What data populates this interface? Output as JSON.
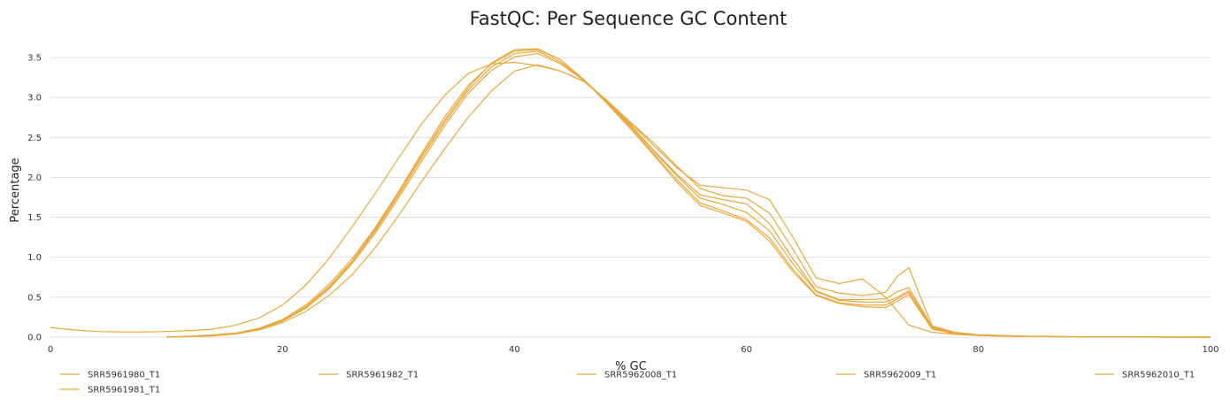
{
  "chart_data": {
    "type": "line",
    "title": "FastQC: Per Sequence GC Content",
    "xlabel": "% GC",
    "ylabel": "Percentage",
    "xlim": [
      0,
      100
    ],
    "ylim": [
      0,
      3.8
    ],
    "x_ticks": [
      "0",
      "20",
      "40",
      "60",
      "80",
      "100"
    ],
    "y_ticks": [
      "0.0",
      "0.5",
      "1.0",
      "1.5",
      "2.0",
      "2.5",
      "3.0",
      "3.5"
    ],
    "grid": true,
    "legend_position": "bottom",
    "line_color": "#e8a83e",
    "series": [
      {
        "name": "SRR5961980_T1",
        "points": [
          [
            0,
            0.12
          ],
          [
            2,
            0.09
          ],
          [
            4,
            0.07
          ],
          [
            6,
            0.065
          ],
          [
            8,
            0.065
          ],
          [
            10,
            0.07
          ],
          [
            12,
            0.08
          ],
          [
            14,
            0.1
          ],
          [
            16,
            0.15
          ],
          [
            18,
            0.24
          ],
          [
            20,
            0.4
          ],
          [
            22,
            0.65
          ],
          [
            24,
            0.98
          ],
          [
            26,
            1.38
          ],
          [
            28,
            1.8
          ],
          [
            30,
            2.24
          ],
          [
            32,
            2.67
          ],
          [
            34,
            3.03
          ],
          [
            36,
            3.3
          ],
          [
            38,
            3.42
          ],
          [
            40,
            3.44
          ],
          [
            42,
            3.4
          ],
          [
            44,
            3.33
          ],
          [
            46,
            3.2
          ],
          [
            48,
            2.96
          ],
          [
            50,
            2.68
          ],
          [
            52,
            2.4
          ],
          [
            54,
            2.12
          ],
          [
            56,
            1.9
          ],
          [
            58,
            1.87
          ],
          [
            60,
            1.84
          ],
          [
            62,
            1.72
          ],
          [
            64,
            1.25
          ],
          [
            66,
            0.74
          ],
          [
            68,
            0.67
          ],
          [
            70,
            0.73
          ],
          [
            72,
            0.5
          ],
          [
            74,
            0.15
          ],
          [
            76,
            0.06
          ],
          [
            78,
            0.035
          ],
          [
            80,
            0.02
          ],
          [
            84,
            0.01
          ],
          [
            90,
            0.003
          ],
          [
            100,
            0
          ]
        ]
      },
      {
        "name": "SRR5961982_T1",
        "points": [
          [
            10,
            0
          ],
          [
            12,
            0.005
          ],
          [
            14,
            0.015
          ],
          [
            16,
            0.04
          ],
          [
            18,
            0.09
          ],
          [
            20,
            0.18
          ],
          [
            22,
            0.32
          ],
          [
            24,
            0.52
          ],
          [
            26,
            0.78
          ],
          [
            28,
            1.12
          ],
          [
            30,
            1.52
          ],
          [
            32,
            1.95
          ],
          [
            34,
            2.36
          ],
          [
            36,
            2.75
          ],
          [
            38,
            3.08
          ],
          [
            40,
            3.33
          ],
          [
            42,
            3.41
          ],
          [
            44,
            3.33
          ],
          [
            46,
            3.2
          ],
          [
            48,
            2.96
          ],
          [
            50,
            2.69
          ],
          [
            52,
            2.43
          ],
          [
            54,
            2.14
          ],
          [
            56,
            1.86
          ],
          [
            58,
            1.77
          ],
          [
            60,
            1.74
          ],
          [
            62,
            1.55
          ],
          [
            64,
            1.1
          ],
          [
            66,
            0.63
          ],
          [
            68,
            0.55
          ],
          [
            70,
            0.52
          ],
          [
            72,
            0.56
          ],
          [
            73,
            0.76
          ],
          [
            74,
            0.87
          ],
          [
            76,
            0.14
          ],
          [
            78,
            0.06
          ],
          [
            80,
            0.03
          ],
          [
            84,
            0.012
          ],
          [
            90,
            0.003
          ],
          [
            100,
            0
          ]
        ]
      },
      {
        "name": "SRR5962008_T1",
        "points": [
          [
            10,
            0
          ],
          [
            12,
            0.01
          ],
          [
            14,
            0.025
          ],
          [
            16,
            0.05
          ],
          [
            18,
            0.11
          ],
          [
            20,
            0.21
          ],
          [
            22,
            0.38
          ],
          [
            24,
            0.63
          ],
          [
            26,
            0.95
          ],
          [
            28,
            1.35
          ],
          [
            30,
            1.8
          ],
          [
            32,
            2.27
          ],
          [
            34,
            2.72
          ],
          [
            36,
            3.12
          ],
          [
            38,
            3.43
          ],
          [
            40,
            3.6
          ],
          [
            42,
            3.61
          ],
          [
            44,
            3.47
          ],
          [
            46,
            3.22
          ],
          [
            48,
            2.93
          ],
          [
            50,
            2.63
          ],
          [
            52,
            2.3
          ],
          [
            54,
            1.97
          ],
          [
            56,
            1.68
          ],
          [
            58,
            1.58
          ],
          [
            60,
            1.47
          ],
          [
            62,
            1.24
          ],
          [
            64,
            0.85
          ],
          [
            66,
            0.53
          ],
          [
            68,
            0.43
          ],
          [
            70,
            0.4
          ],
          [
            72,
            0.4
          ],
          [
            73,
            0.48
          ],
          [
            74,
            0.56
          ],
          [
            76,
            0.11
          ],
          [
            78,
            0.04
          ],
          [
            80,
            0.02
          ],
          [
            84,
            0.008
          ],
          [
            90,
            0.002
          ],
          [
            100,
            0
          ]
        ]
      },
      {
        "name": "SRR5962009_T1",
        "points": [
          [
            10,
            0
          ],
          [
            12,
            0.01
          ],
          [
            14,
            0.025
          ],
          [
            16,
            0.05
          ],
          [
            18,
            0.1
          ],
          [
            20,
            0.2
          ],
          [
            22,
            0.36
          ],
          [
            24,
            0.6
          ],
          [
            26,
            0.92
          ],
          [
            28,
            1.3
          ],
          [
            30,
            1.74
          ],
          [
            32,
            2.2
          ],
          [
            34,
            2.65
          ],
          [
            36,
            3.05
          ],
          [
            38,
            3.34
          ],
          [
            40,
            3.51
          ],
          [
            42,
            3.55
          ],
          [
            44,
            3.42
          ],
          [
            46,
            3.21
          ],
          [
            48,
            2.94
          ],
          [
            50,
            2.65
          ],
          [
            52,
            2.33
          ],
          [
            54,
            2.02
          ],
          [
            56,
            1.74
          ],
          [
            58,
            1.66
          ],
          [
            60,
            1.56
          ],
          [
            62,
            1.33
          ],
          [
            64,
            0.92
          ],
          [
            66,
            0.57
          ],
          [
            68,
            0.46
          ],
          [
            70,
            0.44
          ],
          [
            72,
            0.44
          ],
          [
            73,
            0.5
          ],
          [
            74,
            0.58
          ],
          [
            76,
            0.12
          ],
          [
            78,
            0.045
          ],
          [
            80,
            0.02
          ],
          [
            84,
            0.008
          ],
          [
            90,
            0.002
          ],
          [
            100,
            0
          ]
        ]
      },
      {
        "name": "SRR5962010_T1",
        "points": [
          [
            10,
            0
          ],
          [
            12,
            0.01
          ],
          [
            14,
            0.025
          ],
          [
            16,
            0.05
          ],
          [
            18,
            0.1
          ],
          [
            20,
            0.2
          ],
          [
            22,
            0.37
          ],
          [
            24,
            0.62
          ],
          [
            26,
            0.94
          ],
          [
            28,
            1.33
          ],
          [
            30,
            1.77
          ],
          [
            32,
            2.24
          ],
          [
            34,
            2.69
          ],
          [
            36,
            3.09
          ],
          [
            38,
            3.38
          ],
          [
            40,
            3.55
          ],
          [
            42,
            3.58
          ],
          [
            44,
            3.44
          ],
          [
            46,
            3.22
          ],
          [
            48,
            2.95
          ],
          [
            50,
            2.66
          ],
          [
            52,
            2.34
          ],
          [
            54,
            2.04
          ],
          [
            56,
            1.78
          ],
          [
            58,
            1.72
          ],
          [
            60,
            1.67
          ],
          [
            62,
            1.42
          ],
          [
            64,
            0.98
          ],
          [
            66,
            0.58
          ],
          [
            68,
            0.47
          ],
          [
            70,
            0.47
          ],
          [
            72,
            0.48
          ],
          [
            73,
            0.57
          ],
          [
            74,
            0.62
          ],
          [
            76,
            0.13
          ],
          [
            78,
            0.05
          ],
          [
            80,
            0.025
          ],
          [
            84,
            0.01
          ],
          [
            90,
            0.002
          ],
          [
            100,
            0
          ]
        ]
      },
      {
        "name": "SRR5961981_T1",
        "points": [
          [
            10,
            0
          ],
          [
            12,
            0.01
          ],
          [
            14,
            0.025
          ],
          [
            16,
            0.05
          ],
          [
            18,
            0.11
          ],
          [
            20,
            0.22
          ],
          [
            22,
            0.4
          ],
          [
            24,
            0.66
          ],
          [
            26,
            0.98
          ],
          [
            28,
            1.37
          ],
          [
            30,
            1.82
          ],
          [
            32,
            2.3
          ],
          [
            34,
            2.76
          ],
          [
            36,
            3.15
          ],
          [
            38,
            3.42
          ],
          [
            40,
            3.58
          ],
          [
            42,
            3.6
          ],
          [
            44,
            3.47
          ],
          [
            46,
            3.22
          ],
          [
            48,
            2.92
          ],
          [
            50,
            2.61
          ],
          [
            52,
            2.28
          ],
          [
            54,
            1.94
          ],
          [
            56,
            1.65
          ],
          [
            58,
            1.55
          ],
          [
            60,
            1.45
          ],
          [
            62,
            1.2
          ],
          [
            64,
            0.82
          ],
          [
            66,
            0.52
          ],
          [
            68,
            0.42
          ],
          [
            70,
            0.38
          ],
          [
            72,
            0.37
          ],
          [
            73,
            0.45
          ],
          [
            74,
            0.53
          ],
          [
            76,
            0.1
          ],
          [
            78,
            0.04
          ],
          [
            80,
            0.02
          ],
          [
            84,
            0.008
          ],
          [
            90,
            0.002
          ],
          [
            100,
            0
          ]
        ]
      }
    ]
  }
}
